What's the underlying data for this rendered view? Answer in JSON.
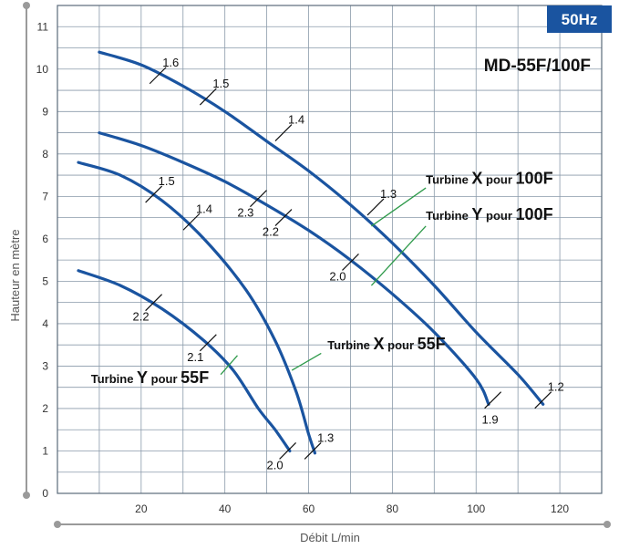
{
  "badge": "50Hz",
  "model": "MD-55F/100F",
  "colors": {
    "curve": "#1a54a0",
    "badge_bg": "#1a54a0",
    "grid": "#8a9aaa",
    "leader": "#2e9a4a",
    "axis": "#9a9a9a"
  },
  "chart_data": {
    "type": "line",
    "xlabel": "Débit L/min",
    "ylabel": "Hauteur en mètre",
    "xlim": [
      0,
      130
    ],
    "ylim": [
      0,
      11.5
    ],
    "xticks": [
      20,
      40,
      60,
      80,
      100,
      120
    ],
    "yticks": [
      0,
      1,
      2,
      3,
      4,
      5,
      6,
      7,
      8,
      9,
      10,
      11
    ],
    "grid": true,
    "series": [
      {
        "name": "Turbine X pour 100F",
        "parts": [
          "Turbine ",
          "X",
          " pour ",
          "100F"
        ],
        "points": [
          [
            10,
            10.4
          ],
          [
            20,
            10.1
          ],
          [
            30,
            9.6
          ],
          [
            40,
            9.0
          ],
          [
            50,
            8.3
          ],
          [
            60,
            7.6
          ],
          [
            70,
            6.8
          ],
          [
            80,
            5.9
          ],
          [
            90,
            4.9
          ],
          [
            100,
            3.8
          ],
          [
            110,
            2.8
          ],
          [
            116,
            2.1
          ]
        ],
        "marks": [
          {
            "x": 24,
            "y": 9.85,
            "label": "1.6",
            "side": "right"
          },
          {
            "x": 36,
            "y": 9.35,
            "label": "1.5",
            "side": "right"
          },
          {
            "x": 54,
            "y": 8.5,
            "label": "1.4",
            "side": "right"
          },
          {
            "x": 76,
            "y": 6.75,
            "label": "1.3",
            "side": "right"
          },
          {
            "x": 116,
            "y": 2.2,
            "label": "1.2",
            "side": "right"
          }
        ]
      },
      {
        "name": "Turbine Y pour 100F",
        "parts": [
          "Turbine ",
          "Y",
          " pour ",
          "100F"
        ],
        "points": [
          [
            10,
            8.5
          ],
          [
            20,
            8.2
          ],
          [
            30,
            7.8
          ],
          [
            40,
            7.35
          ],
          [
            50,
            6.8
          ],
          [
            60,
            6.2
          ],
          [
            70,
            5.5
          ],
          [
            80,
            4.7
          ],
          [
            90,
            3.8
          ],
          [
            100,
            2.7
          ],
          [
            103,
            2.1
          ]
        ],
        "marks": [
          {
            "x": 48,
            "y": 6.95,
            "label": "2.3",
            "side": "left"
          },
          {
            "x": 54,
            "y": 6.5,
            "label": "2.2",
            "side": "left"
          },
          {
            "x": 70,
            "y": 5.45,
            "label": "2.0",
            "side": "left"
          },
          {
            "x": 104,
            "y": 2.2,
            "label": "1.9",
            "side": "below"
          }
        ]
      },
      {
        "name": "Turbine X pour 55F",
        "parts": [
          "Turbine ",
          "X",
          " pour ",
          "55F"
        ],
        "points": [
          [
            5,
            7.8
          ],
          [
            15,
            7.5
          ],
          [
            25,
            6.9
          ],
          [
            35,
            6.0
          ],
          [
            45,
            4.8
          ],
          [
            52,
            3.6
          ],
          [
            57,
            2.4
          ],
          [
            60,
            1.4
          ],
          [
            61.5,
            0.95
          ]
        ],
        "marks": [
          {
            "x": 23,
            "y": 7.05,
            "label": "1.5",
            "side": "right"
          },
          {
            "x": 32,
            "y": 6.4,
            "label": "1.4",
            "side": "right"
          },
          {
            "x": 61,
            "y": 1.0,
            "label": "1.3",
            "side": "right"
          }
        ]
      },
      {
        "name": "Turbine Y pour 55F",
        "parts": [
          "Turbine ",
          "Y",
          " pour ",
          "55F"
        ],
        "points": [
          [
            5,
            5.25
          ],
          [
            15,
            4.9
          ],
          [
            25,
            4.35
          ],
          [
            35,
            3.6
          ],
          [
            42,
            2.9
          ],
          [
            48,
            2.0
          ],
          [
            52,
            1.5
          ],
          [
            55.5,
            1.0
          ]
        ],
        "marks": [
          {
            "x": 23,
            "y": 4.5,
            "label": "2.2",
            "side": "left"
          },
          {
            "x": 36,
            "y": 3.55,
            "label": "2.1",
            "side": "left"
          },
          {
            "x": 55,
            "y": 1.0,
            "label": "2.0",
            "side": "left"
          }
        ]
      }
    ],
    "annotations": [
      {
        "series": 0,
        "text_x": 88,
        "text_y": 7.3,
        "leader_from": [
          88,
          7.2
        ],
        "leader_to": [
          75,
          6.3
        ]
      },
      {
        "series": 1,
        "text_x": 88,
        "text_y": 6.45,
        "leader_from": [
          88,
          6.3
        ],
        "leader_to": [
          75,
          4.9
        ]
      },
      {
        "series": 2,
        "text_x": 64.5,
        "text_y": 3.4,
        "leader_from": [
          63,
          3.3
        ],
        "leader_to": [
          56,
          2.9
        ]
      },
      {
        "series": 3,
        "text_x": 8,
        "text_y": 2.6,
        "leader_from": [
          39,
          2.8
        ],
        "leader_to": [
          43,
          3.25
        ]
      }
    ]
  }
}
